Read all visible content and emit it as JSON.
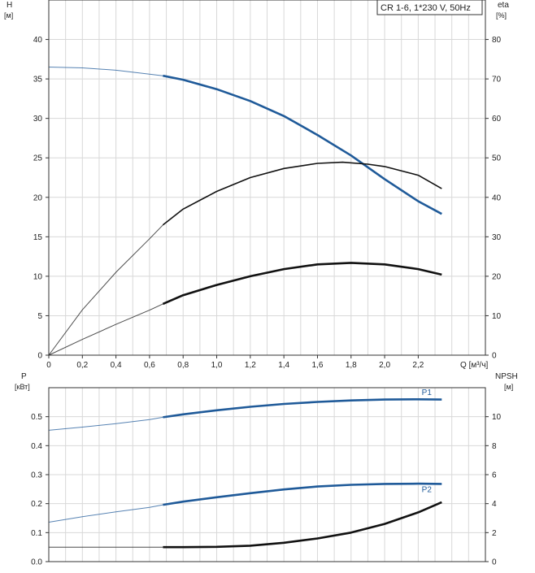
{
  "legend_box": "CR 1-6, 1*230 V, 50Hz",
  "colors": {
    "blue": "#1f5a99",
    "black": "#111111",
    "grid": "#d8d8d8",
    "frame": "#333333"
  },
  "chart_data": [
    {
      "type": "line",
      "panel": "top",
      "x_axis": {
        "label": "Q [м³/ч]",
        "range": [
          0,
          2.6
        ],
        "ticks": [
          "0",
          "0,2",
          "0,4",
          "0,6",
          "0,8",
          "1,0",
          "1,2",
          "1,4",
          "1,6",
          "1,8",
          "2,0",
          "2,2"
        ]
      },
      "y_axis_left": {
        "label_top": "H",
        "label_unit": "[м]",
        "range": [
          0,
          45
        ],
        "ticks": [
          "0",
          "5",
          "10",
          "15",
          "20",
          "25",
          "30",
          "35",
          "40"
        ]
      },
      "y_axis_right": {
        "label_top": "eta",
        "label_unit": "[%]",
        "range": [
          0,
          90
        ],
        "ticks": [
          "0",
          "10",
          "20",
          "30",
          "40",
          "50",
          "60",
          "70",
          "80"
        ]
      },
      "grid": true,
      "series": [
        {
          "axis": "left",
          "color": "blue",
          "thick_from": 0.68,
          "x": [
            0,
            0.2,
            0.4,
            0.6,
            0.68,
            0.8,
            1.0,
            1.2,
            1.4,
            1.6,
            1.8,
            2.0,
            2.2,
            2.34
          ],
          "y": [
            36.5,
            36.4,
            36.1,
            35.6,
            35.4,
            34.9,
            33.7,
            32.2,
            30.3,
            27.9,
            25.3,
            22.3,
            19.5,
            17.9
          ]
        },
        {
          "axis": "right",
          "color": "black",
          "thick_from": 0.68,
          "weight": "normal",
          "x": [
            0,
            0.2,
            0.4,
            0.6,
            0.68,
            0.8,
            1.0,
            1.2,
            1.4,
            1.6,
            1.75,
            1.9,
            2.0,
            2.2,
            2.34
          ],
          "y": [
            0,
            11.5,
            21,
            29.5,
            33,
            37,
            41.5,
            45,
            47.3,
            48.6,
            48.9,
            48.4,
            47.8,
            45.6,
            42.2
          ]
        },
        {
          "axis": "right",
          "color": "black",
          "thick_from": 0.68,
          "weight": "bold",
          "x": [
            0,
            0.2,
            0.4,
            0.6,
            0.68,
            0.8,
            1.0,
            1.2,
            1.4,
            1.6,
            1.8,
            2.0,
            2.2,
            2.34
          ],
          "y": [
            0,
            4,
            7.8,
            11.4,
            13,
            15.2,
            17.8,
            20,
            21.8,
            23,
            23.4,
            23,
            21.8,
            20.4
          ]
        }
      ]
    },
    {
      "type": "line",
      "panel": "bottom",
      "x_axis": {
        "range": [
          0,
          2.6
        ]
      },
      "y_axis_left": {
        "label_top": "P",
        "label_unit": "[кВт]",
        "range": [
          0,
          0.6
        ],
        "ticks": [
          "0.0",
          "0.1",
          "0.2",
          "0.3",
          "0.4",
          "0.5"
        ]
      },
      "y_axis_right": {
        "label_top": "NPSH",
        "label_unit": "[м]",
        "range": [
          0,
          12
        ],
        "ticks": [
          "0",
          "2",
          "4",
          "6",
          "8",
          "10"
        ]
      },
      "grid": true,
      "series": [
        {
          "name": "P1",
          "axis": "left",
          "color": "blue",
          "thick_from": 0.68,
          "x": [
            0,
            0.2,
            0.4,
            0.6,
            0.68,
            0.8,
            1.0,
            1.2,
            1.4,
            1.6,
            1.8,
            2.0,
            2.2,
            2.34
          ],
          "y": [
            0.453,
            0.464,
            0.476,
            0.49,
            0.498,
            0.508,
            0.522,
            0.534,
            0.544,
            0.551,
            0.556,
            0.559,
            0.56,
            0.559
          ]
        },
        {
          "name": "P2",
          "axis": "left",
          "color": "blue",
          "thick_from": 0.68,
          "x": [
            0,
            0.2,
            0.4,
            0.6,
            0.68,
            0.8,
            1.0,
            1.2,
            1.4,
            1.6,
            1.8,
            2.0,
            2.2,
            2.34
          ],
          "y": [
            0.136,
            0.155,
            0.172,
            0.187,
            0.196,
            0.207,
            0.222,
            0.236,
            0.249,
            0.259,
            0.265,
            0.268,
            0.269,
            0.268
          ]
        },
        {
          "axis": "right",
          "color": "black",
          "thick_from": 0.68,
          "weight": "bold",
          "x": [
            0,
            0.2,
            0.4,
            0.6,
            0.68,
            0.8,
            1.0,
            1.2,
            1.4,
            1.6,
            1.8,
            2.0,
            2.2,
            2.34
          ],
          "y": [
            1.0,
            1.0,
            1.0,
            1.0,
            1.0,
            1.0,
            1.02,
            1.1,
            1.3,
            1.6,
            2.0,
            2.6,
            3.4,
            4.1
          ]
        }
      ]
    }
  ]
}
